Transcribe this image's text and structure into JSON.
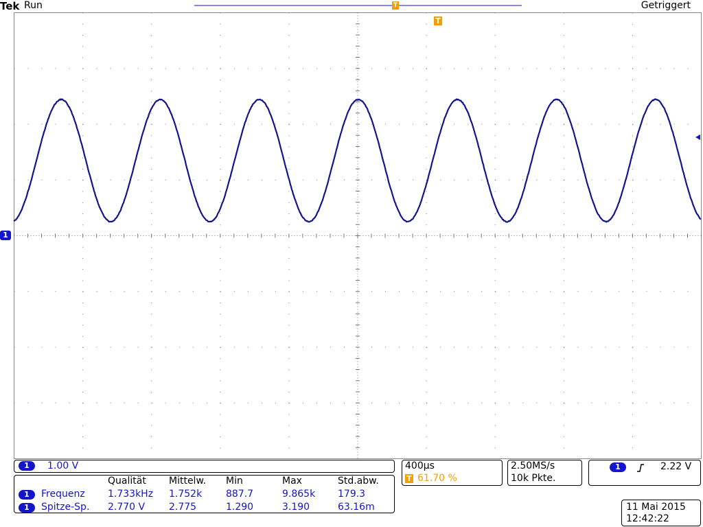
{
  "header": {
    "brand": "Tek",
    "status": "Run",
    "trigger_state": "Getriggert"
  },
  "markers": {
    "ground": "1",
    "trigger": "T",
    "trigger_time": "T"
  },
  "channel": {
    "badge": "1",
    "scale": "1.00 V"
  },
  "measurements": {
    "columns": [
      "Qualität",
      "Mittelw.",
      "Min",
      "Max",
      "Std.abw."
    ],
    "rows": [
      {
        "badge": "1",
        "name": "Frequenz",
        "values": [
          "1.733kHz",
          "1.752k",
          "887.7",
          "9.865k",
          "179.3"
        ]
      },
      {
        "badge": "1",
        "name": "Spitze-Sp.",
        "values": [
          "2.770 V",
          "2.775",
          "1.290",
          "3.190",
          "63.16m"
        ]
      }
    ]
  },
  "timebase": {
    "scale": "400µs",
    "trigger_badge": "T",
    "trigger_position": "61.70 %"
  },
  "acquisition": {
    "sample_rate": "2.50MS/s",
    "record_length": "10k Pkte."
  },
  "trigger": {
    "source": "1",
    "level": "2.22 V"
  },
  "datetime": {
    "date": "11 Mai 2015",
    "time": "12:42:22"
  }
}
